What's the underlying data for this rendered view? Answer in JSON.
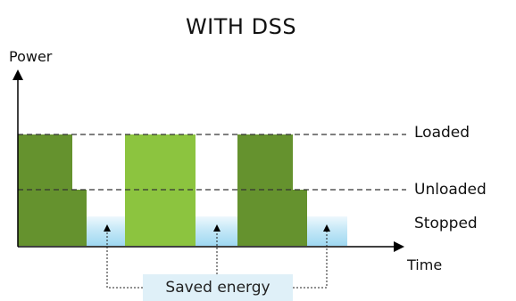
{
  "title": "WITH DSS",
  "axes": {
    "y_label": "Power",
    "x_label": "Time"
  },
  "levels": {
    "loaded": "Loaded",
    "unloaded": "Unloaded",
    "stopped": "Stopped"
  },
  "annotation": {
    "saved_energy": "Saved energy"
  },
  "colors": {
    "dark_green": "#65922e",
    "light_green": "#8cc43f",
    "stopped_blue": "#a8dcf2",
    "stopped_blue_fade": "#e8f6fc",
    "axis": "#000000",
    "dashed": "#333333"
  }
}
